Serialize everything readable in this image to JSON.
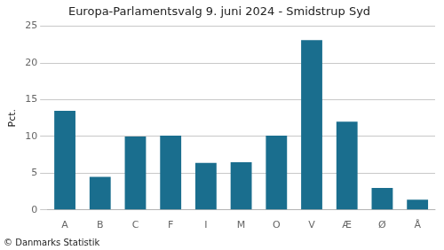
{
  "chart_data": {
    "type": "bar",
    "title": "Europa-Parlamentsvalg 9. juni 2024 - Smidstrup Syd",
    "categories": [
      "A",
      "B",
      "C",
      "F",
      "I",
      "M",
      "O",
      "V",
      "Æ",
      "Ø",
      "Å"
    ],
    "values": [
      13.5,
      4.5,
      10.0,
      10.1,
      6.4,
      6.5,
      10.1,
      23.1,
      12.0,
      3.0,
      1.4
    ],
    "color": "#1a6e8e",
    "ylabel": "Pct.",
    "ylim": [
      0,
      25
    ],
    "yticks": [
      0,
      5,
      10,
      15,
      20,
      25
    ],
    "grid": true,
    "annotations": [
      "© Danmarks Statistik"
    ]
  }
}
